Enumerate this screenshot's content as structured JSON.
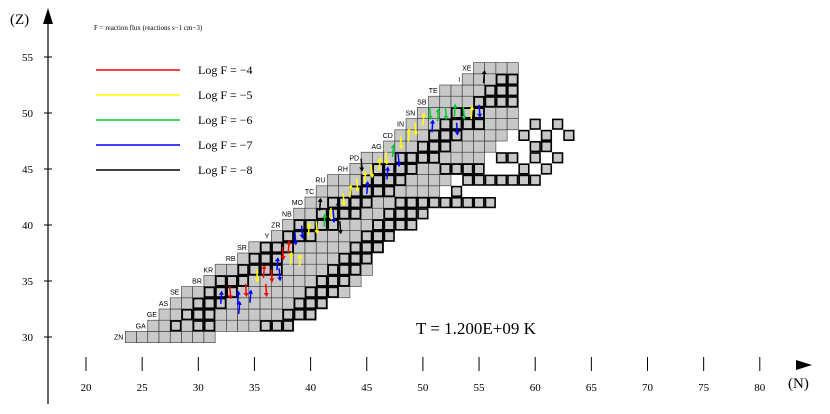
{
  "chart_data": {
    "type": "heatmap",
    "subtitle": "F = reaction flux (reactions s−1 cm−3)",
    "temperature": "T =  1.200E+09  K",
    "xlabel": "(N)",
    "ylabel": "(Z)",
    "xlim": [
      19,
      82
    ],
    "ylim": [
      29,
      57
    ],
    "x_ticks": [
      20,
      25,
      30,
      35,
      40,
      45,
      50,
      55,
      60,
      65,
      70,
      75,
      80
    ],
    "y_ticks": [
      30,
      35,
      40,
      45,
      50,
      55
    ],
    "legend": [
      {
        "label": "Log F =  −4",
        "color": "#ff0000"
      },
      {
        "label": "Log F =  −5",
        "color": "#ffff00"
      },
      {
        "label": "Log F =  −6",
        "color": "#00cc33"
      },
      {
        "label": "Log F =  −7",
        "color": "#0000ff"
      },
      {
        "label": "Log F =  −8",
        "color": "#000000"
      }
    ],
    "rows": [
      {
        "z": 30,
        "n_min": 24,
        "n_max": 31,
        "symbol": "ZN"
      },
      {
        "z": 31,
        "n_min": 26,
        "n_max": 38,
        "symbol": "GA"
      },
      {
        "z": 32,
        "n_min": 27,
        "n_max": 40,
        "symbol": "GE"
      },
      {
        "z": 33,
        "n_min": 28,
        "n_max": 41,
        "symbol": "AS"
      },
      {
        "z": 34,
        "n_min": 29,
        "n_max": 43,
        "symbol": "SE"
      },
      {
        "z": 35,
        "n_min": 31,
        "n_max": 44,
        "symbol": "BR"
      },
      {
        "z": 36,
        "n_min": 32,
        "n_max": 45,
        "symbol": "KR"
      },
      {
        "z": 37,
        "n_min": 34,
        "n_max": 45,
        "symbol": "RB"
      },
      {
        "z": 38,
        "n_min": 35,
        "n_max": 46,
        "symbol": "SR"
      },
      {
        "z": 39,
        "n_min": 37,
        "n_max": 46,
        "symbol": "Y"
      },
      {
        "z": 40,
        "n_min": 38,
        "n_max": 47,
        "symbol": "ZR"
      },
      {
        "z": 41,
        "n_min": 39,
        "n_max": 48,
        "symbol": "NB"
      },
      {
        "z": 42,
        "n_min": 40,
        "n_max": 49,
        "symbol": "MO"
      },
      {
        "z": 43,
        "n_min": 41,
        "n_max": 51,
        "symbol": "TC"
      },
      {
        "z": 44,
        "n_min": 42,
        "n_max": 52,
        "symbol": "RU"
      },
      {
        "z": 45,
        "n_min": 44,
        "n_max": 54,
        "symbol": "RH"
      },
      {
        "z": 46,
        "n_min": 45,
        "n_max": 55,
        "symbol": "PD"
      },
      {
        "z": 47,
        "n_min": 47,
        "n_max": 56,
        "symbol": "AG"
      },
      {
        "z": 48,
        "n_min": 48,
        "n_max": 57,
        "symbol": "CD"
      },
      {
        "z": 49,
        "n_min": 49,
        "n_max": 58,
        "symbol": "IN"
      },
      {
        "z": 50,
        "n_min": 50,
        "n_max": 58,
        "symbol": "SN"
      },
      {
        "z": 51,
        "n_min": 51,
        "n_max": 58,
        "symbol": "SB"
      },
      {
        "z": 52,
        "n_min": 52,
        "n_max": 58,
        "symbol": "TE"
      },
      {
        "z": 53,
        "n_min": 54,
        "n_max": 58,
        "symbol": "I"
      },
      {
        "z": 54,
        "n_min": 55,
        "n_max": 58,
        "symbol": "XE"
      }
    ],
    "bold_cells": [
      [
        30,
        31
      ],
      [
        31,
        31
      ],
      [
        28,
        31
      ],
      [
        29,
        32
      ],
      [
        30,
        32
      ],
      [
        31,
        32
      ],
      [
        30,
        33
      ],
      [
        31,
        33
      ],
      [
        32,
        33
      ],
      [
        31,
        34
      ],
      [
        32,
        34
      ],
      [
        33,
        34
      ],
      [
        32,
        35
      ],
      [
        33,
        35
      ],
      [
        34,
        35
      ],
      [
        34,
        36
      ],
      [
        35,
        36
      ],
      [
        36,
        36
      ],
      [
        37,
        36
      ],
      [
        35,
        37
      ],
      [
        36,
        37
      ],
      [
        37,
        37
      ],
      [
        36,
        38
      ],
      [
        37,
        38
      ],
      [
        38,
        38
      ],
      [
        38,
        39
      ],
      [
        39,
        39
      ],
      [
        40,
        39
      ],
      [
        39,
        40
      ],
      [
        40,
        40
      ],
      [
        41,
        40
      ],
      [
        42,
        40
      ],
      [
        41,
        41
      ],
      [
        42,
        41
      ],
      [
        43,
        41
      ],
      [
        44,
        41
      ],
      [
        42,
        42
      ],
      [
        43,
        42
      ],
      [
        44,
        42
      ],
      [
        45,
        42
      ],
      [
        44,
        43
      ],
      [
        45,
        43
      ],
      [
        46,
        43
      ],
      [
        47,
        43
      ],
      [
        45,
        44
      ],
      [
        46,
        44
      ],
      [
        47,
        44
      ],
      [
        48,
        44
      ],
      [
        46,
        45
      ],
      [
        47,
        45
      ],
      [
        48,
        45
      ],
      [
        49,
        45
      ],
      [
        48,
        46
      ],
      [
        49,
        46
      ],
      [
        50,
        46
      ],
      [
        51,
        46
      ],
      [
        50,
        47
      ],
      [
        51,
        47
      ],
      [
        52,
        47
      ],
      [
        51,
        48
      ],
      [
        52,
        48
      ],
      [
        53,
        48
      ],
      [
        52,
        49
      ],
      [
        53,
        49
      ],
      [
        54,
        49
      ],
      [
        55,
        49
      ],
      [
        53,
        50
      ],
      [
        54,
        50
      ],
      [
        55,
        50
      ],
      [
        55,
        51
      ],
      [
        56,
        51
      ],
      [
        57,
        51
      ],
      [
        58,
        51
      ],
      [
        56,
        52
      ],
      [
        57,
        52
      ],
      [
        58,
        52
      ],
      [
        57,
        53
      ],
      [
        58,
        53
      ],
      [
        59,
        48
      ],
      [
        60,
        49
      ],
      [
        61,
        48
      ],
      [
        62,
        49
      ],
      [
        63,
        48
      ],
      [
        59,
        44
      ],
      [
        60,
        44
      ],
      [
        61,
        45
      ],
      [
        62,
        46
      ],
      [
        60,
        47
      ],
      [
        57,
        46
      ],
      [
        58,
        46
      ],
      [
        56,
        44
      ],
      [
        57,
        44
      ],
      [
        58,
        44
      ],
      [
        54,
        44
      ],
      [
        55,
        44
      ],
      [
        53,
        43
      ],
      [
        54,
        42
      ],
      [
        55,
        42
      ],
      [
        56,
        42
      ],
      [
        52,
        45
      ],
      [
        53,
        45
      ],
      [
        54,
        45
      ],
      [
        55,
        45
      ],
      [
        50,
        42
      ],
      [
        51,
        42
      ],
      [
        52,
        42
      ],
      [
        53,
        42
      ],
      [
        48,
        42
      ],
      [
        49,
        42
      ],
      [
        47,
        41
      ],
      [
        48,
        41
      ],
      [
        49,
        41
      ],
      [
        50,
        41
      ],
      [
        46,
        40
      ],
      [
        47,
        40
      ],
      [
        48,
        40
      ],
      [
        49,
        40
      ],
      [
        45,
        39
      ],
      [
        46,
        39
      ],
      [
        47,
        39
      ],
      [
        44,
        38
      ],
      [
        45,
        38
      ],
      [
        46,
        38
      ],
      [
        43,
        37
      ],
      [
        44,
        37
      ],
      [
        45,
        37
      ],
      [
        42,
        36
      ],
      [
        43,
        36
      ],
      [
        44,
        36
      ],
      [
        41,
        35
      ],
      [
        42,
        35
      ],
      [
        43,
        35
      ],
      [
        40,
        34
      ],
      [
        41,
        34
      ],
      [
        42,
        34
      ],
      [
        39,
        33
      ],
      [
        40,
        33
      ],
      [
        41,
        33
      ],
      [
        38,
        32
      ],
      [
        39,
        32
      ],
      [
        40,
        32
      ],
      [
        36,
        31
      ],
      [
        37,
        31
      ],
      [
        38,
        31
      ],
      [
        59,
        45
      ],
      [
        60,
        46
      ],
      [
        61,
        47
      ]
    ],
    "flux_arrows": [
      {
        "n": 32,
        "z": 33.5,
        "color": "#0000ff"
      },
      {
        "n": 32.8,
        "z": 34,
        "color": "#ff0000"
      },
      {
        "n": 33.5,
        "z": 33.5,
        "color": "#0000ff"
      },
      {
        "n": 34.2,
        "z": 34.2,
        "color": "#ff0000"
      },
      {
        "n": 34.6,
        "z": 33.6,
        "color": "#0000ff"
      },
      {
        "n": 35.2,
        "z": 35.5,
        "color": "#ffff00"
      },
      {
        "n": 35.8,
        "z": 35.8,
        "color": "#ff0000"
      },
      {
        "n": 36.5,
        "z": 35.5,
        "color": "#ff0000"
      },
      {
        "n": 37,
        "z": 36.5,
        "color": "#0000ff"
      },
      {
        "n": 37.5,
        "z": 37.5,
        "color": "#ff0000"
      },
      {
        "n": 38,
        "z": 38,
        "color": "#ff0000"
      },
      {
        "n": 38.6,
        "z": 38.8,
        "color": "#0000ff"
      },
      {
        "n": 38.2,
        "z": 37,
        "color": "#ffff00"
      },
      {
        "n": 39.2,
        "z": 39.4,
        "color": "#0000ff"
      },
      {
        "n": 39.8,
        "z": 39.6,
        "color": "#ffff00"
      },
      {
        "n": 40.5,
        "z": 39.8,
        "color": "#ffff00"
      },
      {
        "n": 41.2,
        "z": 40.4,
        "color": "#00cc33"
      },
      {
        "n": 41.8,
        "z": 41,
        "color": "#ffff00"
      },
      {
        "n": 42.4,
        "z": 41.5,
        "color": "#000000"
      },
      {
        "n": 42.9,
        "z": 42.3,
        "color": "#ffff00"
      },
      {
        "n": 43.5,
        "z": 43,
        "color": "#ffff00"
      },
      {
        "n": 44.1,
        "z": 43.6,
        "color": "#ffff00"
      },
      {
        "n": 44.8,
        "z": 44.2,
        "color": "#ffff00"
      },
      {
        "n": 45.4,
        "z": 44.8,
        "color": "#ffff00"
      },
      {
        "n": 46.1,
        "z": 45.4,
        "color": "#ffff00"
      },
      {
        "n": 46.7,
        "z": 46,
        "color": "#ffff00"
      },
      {
        "n": 47.3,
        "z": 46.6,
        "color": "#00cc33"
      },
      {
        "n": 48,
        "z": 47.4,
        "color": "#ffff00"
      },
      {
        "n": 48.7,
        "z": 48,
        "color": "#ffff00"
      },
      {
        "n": 49.3,
        "z": 48.6,
        "color": "#ffff00"
      },
      {
        "n": 50,
        "z": 49.4,
        "color": "#ffff00"
      },
      {
        "n": 50.6,
        "z": 50,
        "color": "#00cc33"
      },
      {
        "n": 51.3,
        "z": 49.8,
        "color": "#00cc33"
      },
      {
        "n": 52,
        "z": 50,
        "color": "#00cc33"
      },
      {
        "n": 52.8,
        "z": 50.2,
        "color": "#00cc33"
      },
      {
        "n": 53.6,
        "z": 50,
        "color": "#00cc33"
      },
      {
        "n": 54.3,
        "z": 50,
        "color": "#ffff00"
      },
      {
        "n": 55,
        "z": 50.2,
        "color": "#0000ff"
      },
      {
        "n": 50.8,
        "z": 48.8,
        "color": "#0000ff"
      },
      {
        "n": 47.8,
        "z": 45.8,
        "color": "#0000ff"
      },
      {
        "n": 45,
        "z": 43.3,
        "color": "#0000ff"
      },
      {
        "n": 42,
        "z": 40.8,
        "color": "#0000ff"
      },
      {
        "n": 40.8,
        "z": 41.8,
        "color": "#000000"
      },
      {
        "n": 44.5,
        "z": 45.4,
        "color": "#000000"
      },
      {
        "n": 55.4,
        "z": 53.2,
        "color": "#000000"
      },
      {
        "n": 37.2,
        "z": 35.6,
        "color": "#0000ff"
      },
      {
        "n": 33.6,
        "z": 32.6,
        "color": "#0000ff"
      },
      {
        "n": 36,
        "z": 34.2,
        "color": "#ff0000"
      },
      {
        "n": 39,
        "z": 36.8,
        "color": "#ffff00"
      },
      {
        "n": 42.6,
        "z": 39.8,
        "color": "#000000"
      },
      {
        "n": 46.8,
        "z": 44.6,
        "color": "#0000ff"
      },
      {
        "n": 53,
        "z": 48.6,
        "color": "#0000ff"
      }
    ]
  }
}
